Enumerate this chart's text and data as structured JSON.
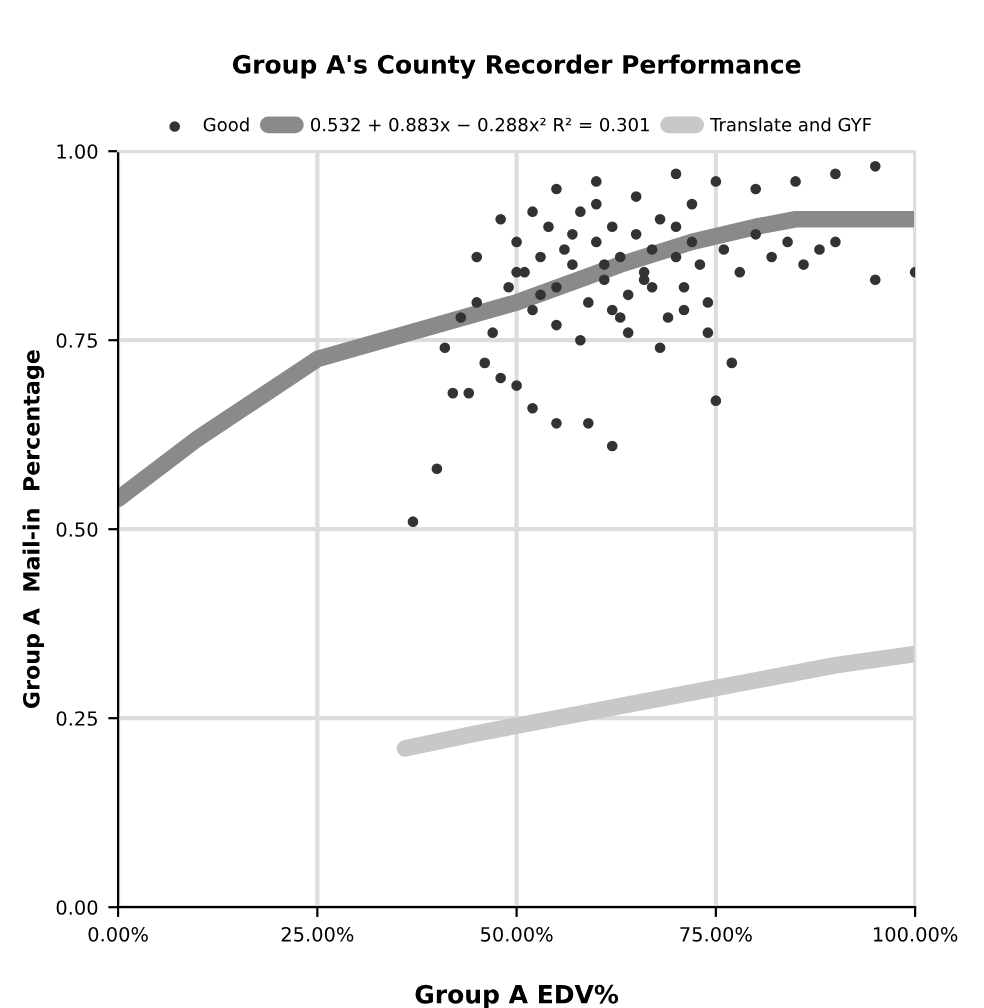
{
  "chart_data": {
    "type": "scatter",
    "title": "Group A's County Recorder Performance",
    "xlabel": "Group A EDV%",
    "ylabel": "Group A  Mail-in  Percentage",
    "xlim": [
      0,
      100
    ],
    "ylim": [
      0,
      1
    ],
    "xticks": [
      {
        "value": 0,
        "label": "0.00%"
      },
      {
        "value": 25,
        "label": "25.00%"
      },
      {
        "value": 50,
        "label": "50.00%"
      },
      {
        "value": 75,
        "label": "75.00%"
      },
      {
        "value": 100,
        "label": "100.00%"
      }
    ],
    "yticks": [
      {
        "value": 0,
        "label": "0.00"
      },
      {
        "value": 0.25,
        "label": "0.25"
      },
      {
        "value": 0.5,
        "label": "0.50"
      },
      {
        "value": 0.75,
        "label": "0.75"
      },
      {
        "value": 1,
        "label": "1.00"
      }
    ],
    "grid": true,
    "legend": "top",
    "series": [
      {
        "name": "Good",
        "marker": "circle",
        "color": "#333333",
        "x": [
          37,
          40,
          42,
          44,
          46,
          48,
          50,
          52,
          55,
          59,
          62,
          75,
          95,
          100,
          41,
          43,
          45,
          47,
          49,
          50,
          51,
          52,
          53,
          54,
          55,
          56,
          57,
          58,
          59,
          60,
          61,
          62,
          63,
          64,
          65,
          66,
          67,
          68,
          69,
          70,
          71,
          72,
          73,
          74,
          76,
          78,
          80,
          82,
          84,
          86,
          88,
          90,
          45,
          48,
          52,
          55,
          58,
          60,
          62,
          64,
          66,
          68,
          70,
          72,
          55,
          60,
          65,
          70,
          75,
          80,
          85,
          90,
          95,
          50,
          53,
          57,
          61,
          63,
          67,
          71,
          74,
          77
        ],
        "values": [
          0.51,
          0.58,
          0.68,
          0.68,
          0.72,
          0.7,
          0.69,
          0.66,
          0.64,
          0.64,
          0.61,
          0.67,
          0.83,
          0.84,
          0.74,
          0.78,
          0.8,
          0.76,
          0.82,
          0.88,
          0.84,
          0.79,
          0.86,
          0.9,
          0.82,
          0.87,
          0.85,
          0.92,
          0.8,
          0.88,
          0.83,
          0.9,
          0.86,
          0.81,
          0.89,
          0.84,
          0.87,
          0.91,
          0.78,
          0.86,
          0.82,
          0.88,
          0.85,
          0.8,
          0.87,
          0.84,
          0.89,
          0.86,
          0.88,
          0.85,
          0.87,
          0.88,
          0.86,
          0.91,
          0.92,
          0.77,
          0.75,
          0.93,
          0.79,
          0.76,
          0.83,
          0.74,
          0.9,
          0.93,
          0.95,
          0.96,
          0.94,
          0.97,
          0.96,
          0.95,
          0.96,
          0.97,
          0.98,
          0.84,
          0.81,
          0.89,
          0.85,
          0.78,
          0.82,
          0.79,
          0.76,
          0.72
        ]
      },
      {
        "name": "0.532 + 0.883x − 0.288x² R² = 0.301",
        "type": "line",
        "color": "#8a8a8a",
        "x": [
          0,
          10,
          25,
          40,
          50,
          63,
          72,
          80,
          85,
          100
        ],
        "values": [
          0.54,
          0.62,
          0.725,
          0.77,
          0.8,
          0.85,
          0.88,
          0.9,
          0.91,
          0.91
        ]
      },
      {
        "name": "Translate and GYF",
        "type": "line",
        "color": "#c8c8c8",
        "x": [
          36,
          45,
          60,
          70,
          80,
          90,
          100
        ],
        "values": [
          0.21,
          0.23,
          0.26,
          0.28,
          0.3,
          0.32,
          0.335
        ]
      }
    ]
  }
}
